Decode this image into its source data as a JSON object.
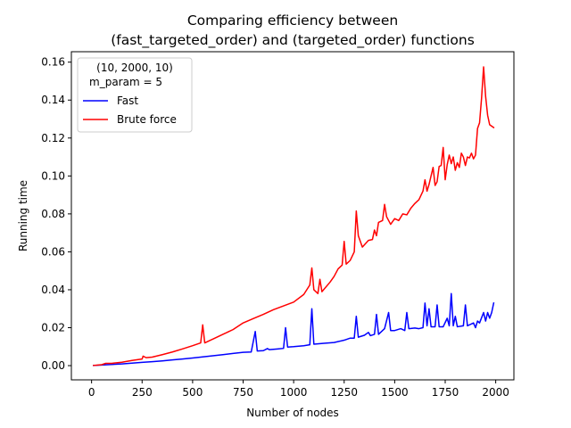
{
  "chart_data": {
    "type": "line",
    "title_line1": "Comparing efficiency between",
    "title_line2": "(fast_targeted_order) and (targeted_order) functions",
    "xlabel": "Number of nodes",
    "ylabel": "Running time",
    "xlim": [
      -100,
      2090
    ],
    "ylim": [
      -0.0075,
      0.1655
    ],
    "xticks": [
      0,
      250,
      500,
      750,
      1000,
      1250,
      1500,
      1750,
      2000
    ],
    "xtick_labels": [
      "0",
      "250",
      "500",
      "750",
      "1000",
      "1250",
      "1500",
      "1750",
      "2000"
    ],
    "yticks": [
      0.0,
      0.02,
      0.04,
      0.06,
      0.08,
      0.1,
      0.12,
      0.14,
      0.16
    ],
    "ytick_labels": [
      "0.00",
      "0.02",
      "0.04",
      "0.06",
      "0.08",
      "0.10",
      "0.12",
      "0.14",
      "0.16"
    ],
    "legend": {
      "placement": "upper-left",
      "title_line1": "(10, 2000, 10)",
      "title_line2": "m_param = 5"
    },
    "grid": false,
    "series": [
      {
        "name": "Fast",
        "color": "#0000ff",
        "points": [
          [
            10,
            0.0001
          ],
          [
            50,
            0.0003
          ],
          [
            100,
            0.0006
          ],
          [
            150,
            0.0009
          ],
          [
            200,
            0.0013
          ],
          [
            250,
            0.0017
          ],
          [
            300,
            0.0021
          ],
          [
            350,
            0.0025
          ],
          [
            400,
            0.003
          ],
          [
            450,
            0.0035
          ],
          [
            500,
            0.004
          ],
          [
            550,
            0.0046
          ],
          [
            600,
            0.0052
          ],
          [
            650,
            0.0058
          ],
          [
            700,
            0.0064
          ],
          [
            750,
            0.007
          ],
          [
            790,
            0.0072
          ],
          [
            810,
            0.018
          ],
          [
            820,
            0.0077
          ],
          [
            850,
            0.0079
          ],
          [
            870,
            0.009
          ],
          [
            880,
            0.0084
          ],
          [
            920,
            0.0088
          ],
          [
            950,
            0.0091
          ],
          [
            960,
            0.02
          ],
          [
            970,
            0.0098
          ],
          [
            1000,
            0.01
          ],
          [
            1050,
            0.0105
          ],
          [
            1080,
            0.011
          ],
          [
            1090,
            0.03
          ],
          [
            1100,
            0.0113
          ],
          [
            1150,
            0.0118
          ],
          [
            1200,
            0.0122
          ],
          [
            1250,
            0.0134
          ],
          [
            1280,
            0.0145
          ],
          [
            1300,
            0.0145
          ],
          [
            1310,
            0.026
          ],
          [
            1320,
            0.015
          ],
          [
            1350,
            0.016
          ],
          [
            1370,
            0.0175
          ],
          [
            1380,
            0.0158
          ],
          [
            1400,
            0.0165
          ],
          [
            1410,
            0.027
          ],
          [
            1420,
            0.0165
          ],
          [
            1450,
            0.0195
          ],
          [
            1470,
            0.028
          ],
          [
            1480,
            0.0185
          ],
          [
            1500,
            0.0185
          ],
          [
            1530,
            0.0195
          ],
          [
            1550,
            0.0185
          ],
          [
            1560,
            0.028
          ],
          [
            1570,
            0.0195
          ],
          [
            1600,
            0.0198
          ],
          [
            1620,
            0.0195
          ],
          [
            1640,
            0.02
          ],
          [
            1650,
            0.033
          ],
          [
            1660,
            0.021
          ],
          [
            1670,
            0.03
          ],
          [
            1680,
            0.0205
          ],
          [
            1700,
            0.0205
          ],
          [
            1710,
            0.032
          ],
          [
            1720,
            0.0205
          ],
          [
            1740,
            0.0205
          ],
          [
            1760,
            0.025
          ],
          [
            1770,
            0.021
          ],
          [
            1780,
            0.038
          ],
          [
            1790,
            0.021
          ],
          [
            1800,
            0.026
          ],
          [
            1810,
            0.0205
          ],
          [
            1840,
            0.021
          ],
          [
            1850,
            0.032
          ],
          [
            1860,
            0.021
          ],
          [
            1890,
            0.0225
          ],
          [
            1900,
            0.02
          ],
          [
            1910,
            0.0235
          ],
          [
            1920,
            0.0225
          ],
          [
            1940,
            0.028
          ],
          [
            1950,
            0.0235
          ],
          [
            1960,
            0.028
          ],
          [
            1970,
            0.025
          ],
          [
            1980,
            0.028
          ],
          [
            1990,
            0.033
          ]
        ]
      },
      {
        "name": "Brute force",
        "color": "#ff0000",
        "points": [
          [
            10,
            0.0001
          ],
          [
            50,
            0.0005
          ],
          [
            70,
            0.0012
          ],
          [
            100,
            0.0012
          ],
          [
            150,
            0.0018
          ],
          [
            200,
            0.0027
          ],
          [
            250,
            0.0035
          ],
          [
            255,
            0.005
          ],
          [
            270,
            0.0042
          ],
          [
            300,
            0.0045
          ],
          [
            350,
            0.0058
          ],
          [
            400,
            0.0072
          ],
          [
            450,
            0.0088
          ],
          [
            500,
            0.0105
          ],
          [
            540,
            0.012
          ],
          [
            550,
            0.0215
          ],
          [
            560,
            0.012
          ],
          [
            600,
            0.014
          ],
          [
            650,
            0.0165
          ],
          [
            700,
            0.019
          ],
          [
            750,
            0.0225
          ],
          [
            800,
            0.0248
          ],
          [
            850,
            0.027
          ],
          [
            900,
            0.0295
          ],
          [
            950,
            0.0315
          ],
          [
            1000,
            0.0335
          ],
          [
            1050,
            0.0375
          ],
          [
            1080,
            0.0425
          ],
          [
            1090,
            0.0515
          ],
          [
            1100,
            0.04
          ],
          [
            1120,
            0.038
          ],
          [
            1130,
            0.0455
          ],
          [
            1140,
            0.039
          ],
          [
            1180,
            0.044
          ],
          [
            1200,
            0.047
          ],
          [
            1220,
            0.051
          ],
          [
            1240,
            0.053
          ],
          [
            1250,
            0.0655
          ],
          [
            1260,
            0.0535
          ],
          [
            1280,
            0.0555
          ],
          [
            1300,
            0.06
          ],
          [
            1310,
            0.0815
          ],
          [
            1320,
            0.0685
          ],
          [
            1340,
            0.0625
          ],
          [
            1370,
            0.066
          ],
          [
            1390,
            0.0665
          ],
          [
            1400,
            0.0715
          ],
          [
            1410,
            0.0685
          ],
          [
            1420,
            0.0755
          ],
          [
            1440,
            0.0765
          ],
          [
            1450,
            0.085
          ],
          [
            1460,
            0.0785
          ],
          [
            1480,
            0.0745
          ],
          [
            1500,
            0.0775
          ],
          [
            1520,
            0.0765
          ],
          [
            1540,
            0.08
          ],
          [
            1560,
            0.0795
          ],
          [
            1580,
            0.083
          ],
          [
            1600,
            0.0855
          ],
          [
            1620,
            0.0875
          ],
          [
            1640,
            0.092
          ],
          [
            1650,
            0.098
          ],
          [
            1660,
            0.092
          ],
          [
            1670,
            0.0955
          ],
          [
            1680,
            0.1
          ],
          [
            1690,
            0.1045
          ],
          [
            1700,
            0.095
          ],
          [
            1710,
            0.097
          ],
          [
            1720,
            0.105
          ],
          [
            1730,
            0.1055
          ],
          [
            1740,
            0.115
          ],
          [
            1750,
            0.098
          ],
          [
            1760,
            0.106
          ],
          [
            1770,
            0.111
          ],
          [
            1780,
            0.1065
          ],
          [
            1790,
            0.11
          ],
          [
            1800,
            0.103
          ],
          [
            1810,
            0.107
          ],
          [
            1820,
            0.1045
          ],
          [
            1830,
            0.112
          ],
          [
            1840,
            0.11
          ],
          [
            1850,
            0.1055
          ],
          [
            1860,
            0.11
          ],
          [
            1870,
            0.1095
          ],
          [
            1880,
            0.112
          ],
          [
            1890,
            0.109
          ],
          [
            1900,
            0.111
          ],
          [
            1910,
            0.125
          ],
          [
            1920,
            0.128
          ],
          [
            1930,
            0.141
          ],
          [
            1940,
            0.1575
          ],
          [
            1950,
            0.142
          ],
          [
            1960,
            0.132
          ],
          [
            1970,
            0.127
          ],
          [
            1990,
            0.1255
          ]
        ]
      }
    ]
  }
}
